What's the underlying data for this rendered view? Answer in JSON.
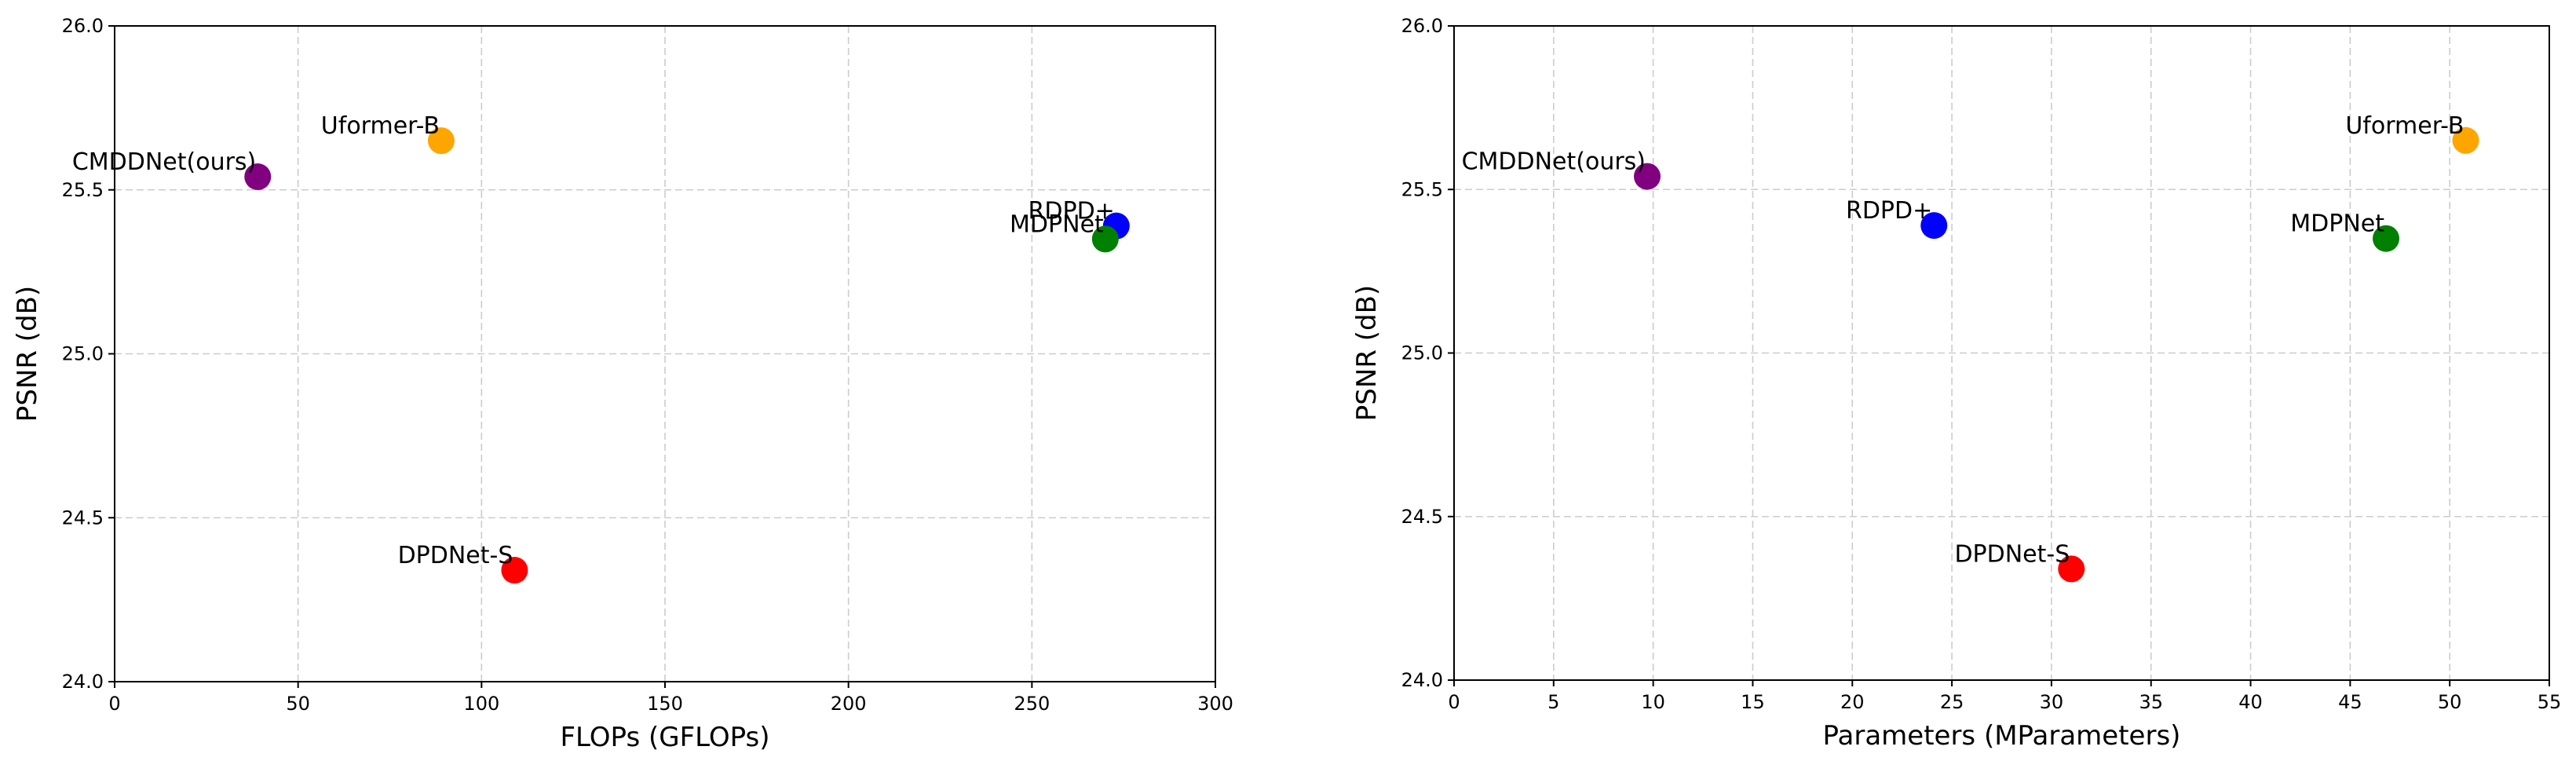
{
  "chart_data": [
    {
      "type": "scatter",
      "title": "",
      "xlabel": "FLOPs (GFLOPs)",
      "ylabel": "PSNR (dB)",
      "xlim": [
        0,
        300
      ],
      "ylim": [
        24.0,
        26.0
      ],
      "xticks": [
        0,
        50,
        100,
        150,
        200,
        250,
        300
      ],
      "yticks": [
        24.0,
        24.5,
        25.0,
        25.5,
        26.0
      ],
      "xtick_labels": [
        "0",
        "50",
        "100",
        "150",
        "200",
        "250",
        "300"
      ],
      "ytick_labels": [
        "24.0",
        "24.5",
        "25.0",
        "25.5",
        "26.0"
      ],
      "grid": true,
      "points": [
        {
          "label": "CMDDNet(ours)",
          "x": 39,
          "y": 25.54,
          "color": "#800080"
        },
        {
          "label": "Uformer-B",
          "x": 89,
          "y": 25.65,
          "color": "#FFA500"
        },
        {
          "label": "RDPD+",
          "x": 273,
          "y": 25.39,
          "color": "#0000FF"
        },
        {
          "label": "MDPNet",
          "x": 270,
          "y": 25.35,
          "color": "#008000"
        },
        {
          "label": "DPDNet-S",
          "x": 109,
          "y": 24.34,
          "color": "#FF0000"
        }
      ]
    },
    {
      "type": "scatter",
      "title": "",
      "xlabel": "Parameters (MParameters)",
      "ylabel": "PSNR (dB)",
      "xlim": [
        0,
        55
      ],
      "ylim": [
        24.0,
        26.0
      ],
      "xticks": [
        0,
        5,
        10,
        15,
        20,
        25,
        30,
        35,
        40,
        45,
        50,
        55
      ],
      "yticks": [
        24.0,
        24.5,
        25.0,
        25.5,
        26.0
      ],
      "xtick_labels": [
        "0",
        "5",
        "10",
        "15",
        "20",
        "25",
        "30",
        "35",
        "40",
        "45",
        "50",
        "55"
      ],
      "ytick_labels": [
        "24.0",
        "24.5",
        "25.0",
        "25.5",
        "26.0"
      ],
      "grid": true,
      "points": [
        {
          "label": "CMDDNet(ours)",
          "x": 9.7,
          "y": 25.54,
          "color": "#800080"
        },
        {
          "label": "RDPD+",
          "x": 24.1,
          "y": 25.39,
          "color": "#0000FF"
        },
        {
          "label": "MDPNet",
          "x": 46.8,
          "y": 25.35,
          "color": "#008000"
        },
        {
          "label": "Uformer-B",
          "x": 50.8,
          "y": 25.65,
          "color": "#FFA500"
        },
        {
          "label": "DPDNet-S",
          "x": 31.0,
          "y": 24.34,
          "color": "#FF0000"
        }
      ]
    }
  ]
}
